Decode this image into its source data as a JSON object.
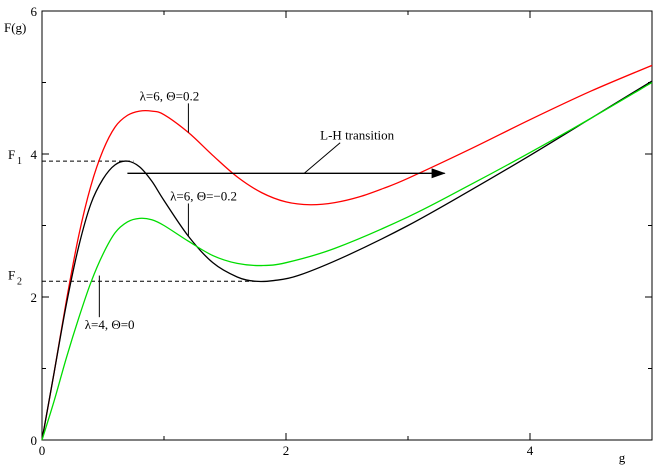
{
  "chart_data": {
    "type": "line",
    "title": "",
    "xlabel": "g",
    "ylabel": "F(g)",
    "xlim": [
      0,
      5
    ],
    "ylim": [
      0,
      6
    ],
    "grid": false,
    "x_ticks": [
      0,
      2,
      4
    ],
    "y_ticks": [
      0,
      2,
      4,
      6
    ],
    "x_tick_labels": [
      "0",
      "2",
      "4"
    ],
    "y_tick_labels": [
      "0",
      "2",
      "4",
      "6"
    ],
    "colors": {
      "red": "#ff0000",
      "black": "#000000",
      "green": "#00dd00"
    },
    "series": [
      {
        "name": "λ=6, Θ=0.2",
        "color": "#ff0000",
        "points": [
          [
            0,
            0
          ],
          [
            0.1,
            0.95
          ],
          [
            0.2,
            1.95
          ],
          [
            0.3,
            2.85
          ],
          [
            0.4,
            3.55
          ],
          [
            0.5,
            4.05
          ],
          [
            0.6,
            4.38
          ],
          [
            0.7,
            4.54
          ],
          [
            0.8,
            4.6
          ],
          [
            0.9,
            4.6
          ],
          [
            1.0,
            4.55
          ],
          [
            1.2,
            4.3
          ],
          [
            1.4,
            3.98
          ],
          [
            1.6,
            3.68
          ],
          [
            1.8,
            3.46
          ],
          [
            2.0,
            3.33
          ],
          [
            2.2,
            3.29
          ],
          [
            2.4,
            3.32
          ],
          [
            2.6,
            3.4
          ],
          [
            2.8,
            3.52
          ],
          [
            3.0,
            3.66
          ],
          [
            3.5,
            4.06
          ],
          [
            4.0,
            4.48
          ],
          [
            4.5,
            4.88
          ],
          [
            5.0,
            5.24
          ]
        ]
      },
      {
        "name": "λ=6, Θ=−0.2",
        "color": "#000000",
        "points": [
          [
            0,
            0
          ],
          [
            0.1,
            0.95
          ],
          [
            0.2,
            1.9
          ],
          [
            0.3,
            2.7
          ],
          [
            0.4,
            3.3
          ],
          [
            0.5,
            3.65
          ],
          [
            0.6,
            3.85
          ],
          [
            0.7,
            3.9
          ],
          [
            0.8,
            3.82
          ],
          [
            0.9,
            3.62
          ],
          [
            1.0,
            3.35
          ],
          [
            1.2,
            2.85
          ],
          [
            1.4,
            2.48
          ],
          [
            1.6,
            2.28
          ],
          [
            1.75,
            2.22
          ],
          [
            1.9,
            2.23
          ],
          [
            2.1,
            2.3
          ],
          [
            2.5,
            2.58
          ],
          [
            3.0,
            3.0
          ],
          [
            3.5,
            3.48
          ],
          [
            4.0,
            3.98
          ],
          [
            4.5,
            4.5
          ],
          [
            5.0,
            5.02
          ]
        ]
      },
      {
        "name": "λ=4, Θ=0",
        "color": "#00dd00",
        "points": [
          [
            0,
            0
          ],
          [
            0.1,
            0.55
          ],
          [
            0.2,
            1.15
          ],
          [
            0.3,
            1.7
          ],
          [
            0.4,
            2.2
          ],
          [
            0.5,
            2.6
          ],
          [
            0.6,
            2.9
          ],
          [
            0.7,
            3.05
          ],
          [
            0.8,
            3.1
          ],
          [
            0.9,
            3.08
          ],
          [
            1.0,
            3.0
          ],
          [
            1.2,
            2.78
          ],
          [
            1.4,
            2.58
          ],
          [
            1.6,
            2.47
          ],
          [
            1.8,
            2.44
          ],
          [
            2.0,
            2.48
          ],
          [
            2.4,
            2.68
          ],
          [
            3.0,
            3.12
          ],
          [
            3.5,
            3.56
          ],
          [
            4.0,
            4.02
          ],
          [
            4.5,
            4.5
          ],
          [
            5.0,
            5.0
          ]
        ]
      }
    ],
    "reference_lines": [
      {
        "label": "F₁",
        "y": 3.9,
        "x_end": 0.75
      },
      {
        "label": "F₂",
        "y": 2.22,
        "x_end": 1.75
      }
    ],
    "arrow": {
      "from": [
        0.7,
        3.73
      ],
      "to": [
        3.3,
        3.73
      ]
    },
    "annotations": [
      {
        "text": "L-H transition",
        "at": [
          2.28,
          4.2
        ],
        "pointer_to": [
          2.15,
          3.73
        ]
      },
      {
        "text": "λ=6, Θ=0.2",
        "at": [
          0.8,
          4.75
        ],
        "pointer_to": [
          1.2,
          4.3
        ]
      },
      {
        "text": "λ=6, Θ=−0.2",
        "at": [
          1.05,
          3.35
        ],
        "pointer_to": [
          1.2,
          2.85
        ]
      },
      {
        "text": "λ=4, Θ=0",
        "at": [
          0.35,
          1.55
        ],
        "pointer_to": [
          0.47,
          2.3
        ]
      }
    ],
    "legend": "none"
  },
  "labels": {
    "f1": "F",
    "f1_sub": "1",
    "f2": "F",
    "f2_sub": "2"
  }
}
